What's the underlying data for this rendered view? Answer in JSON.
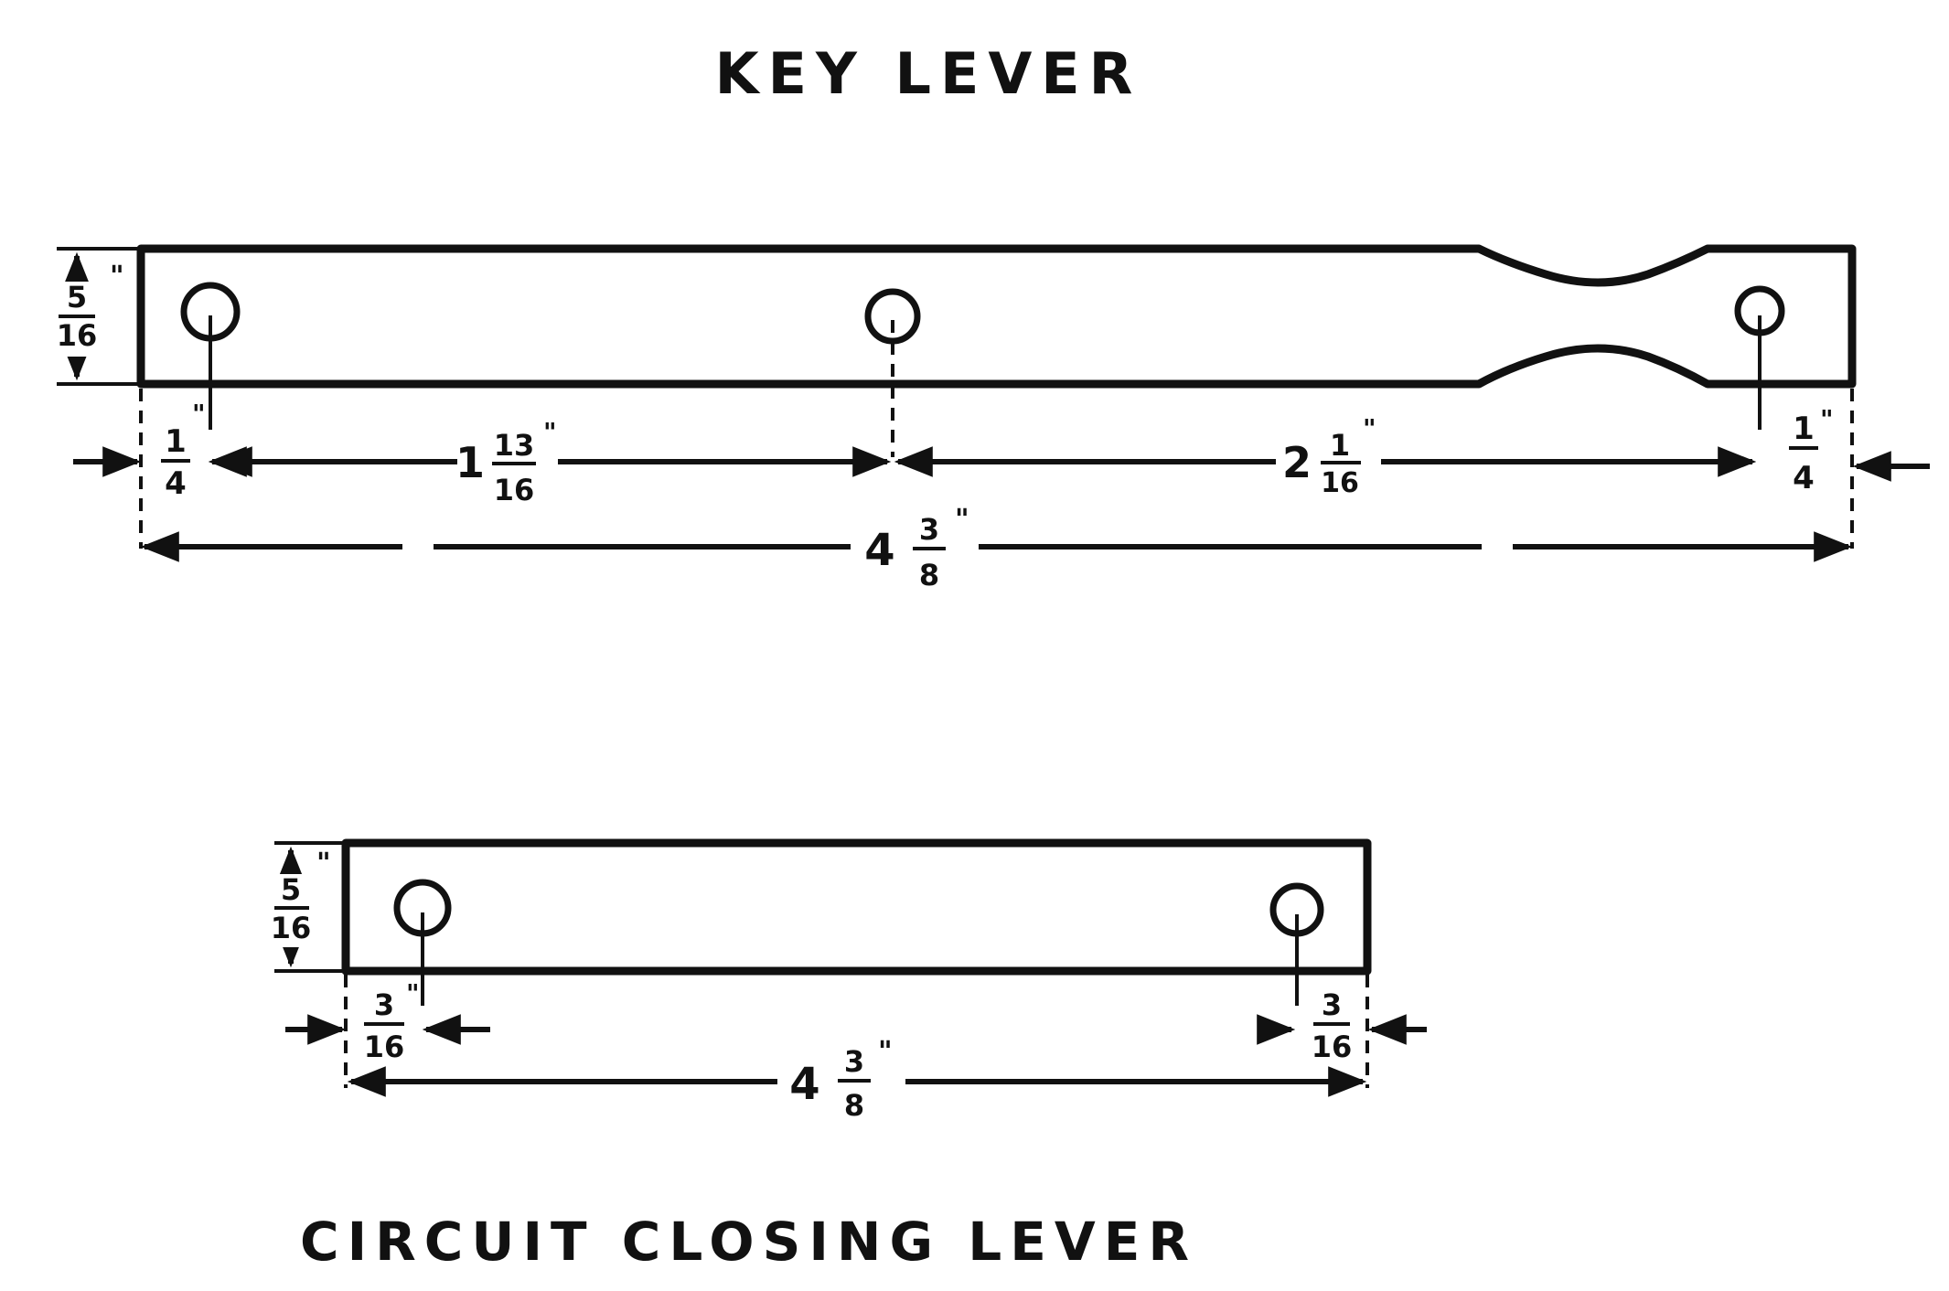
{
  "key_lever": {
    "title": "KEY LEVER",
    "width_whole": "",
    "width_num": "5",
    "width_den": "16",
    "width_unit": "\"",
    "left_offset_num": "1",
    "left_offset_den": "4",
    "left_offset_unit": "\"",
    "spacing1_whole": "1",
    "spacing1_num": "13",
    "spacing1_den": "16",
    "spacing1_unit": "\"",
    "spacing2_whole": "2",
    "spacing2_num": "1",
    "spacing2_den": "16",
    "spacing2_unit": "\"",
    "right_offset_num": "1",
    "right_offset_den": "4",
    "right_offset_unit": "\"",
    "overall_whole": "4",
    "overall_num": "3",
    "overall_den": "8",
    "overall_unit": "\""
  },
  "circuit_closing_lever": {
    "title": "CIRCUIT CLOSING LEVER",
    "width_num": "5",
    "width_den": "16",
    "width_unit": "\"",
    "left_offset_num": "3",
    "left_offset_den": "16",
    "left_offset_unit": "\"",
    "right_offset_num": "3",
    "right_offset_den": "16",
    "right_offset_unit": "",
    "overall_whole": "4",
    "overall_num": "3",
    "overall_den": "8",
    "overall_unit": "\""
  },
  "colors": {
    "ink": "#111111",
    "paper": "#ffffff"
  }
}
